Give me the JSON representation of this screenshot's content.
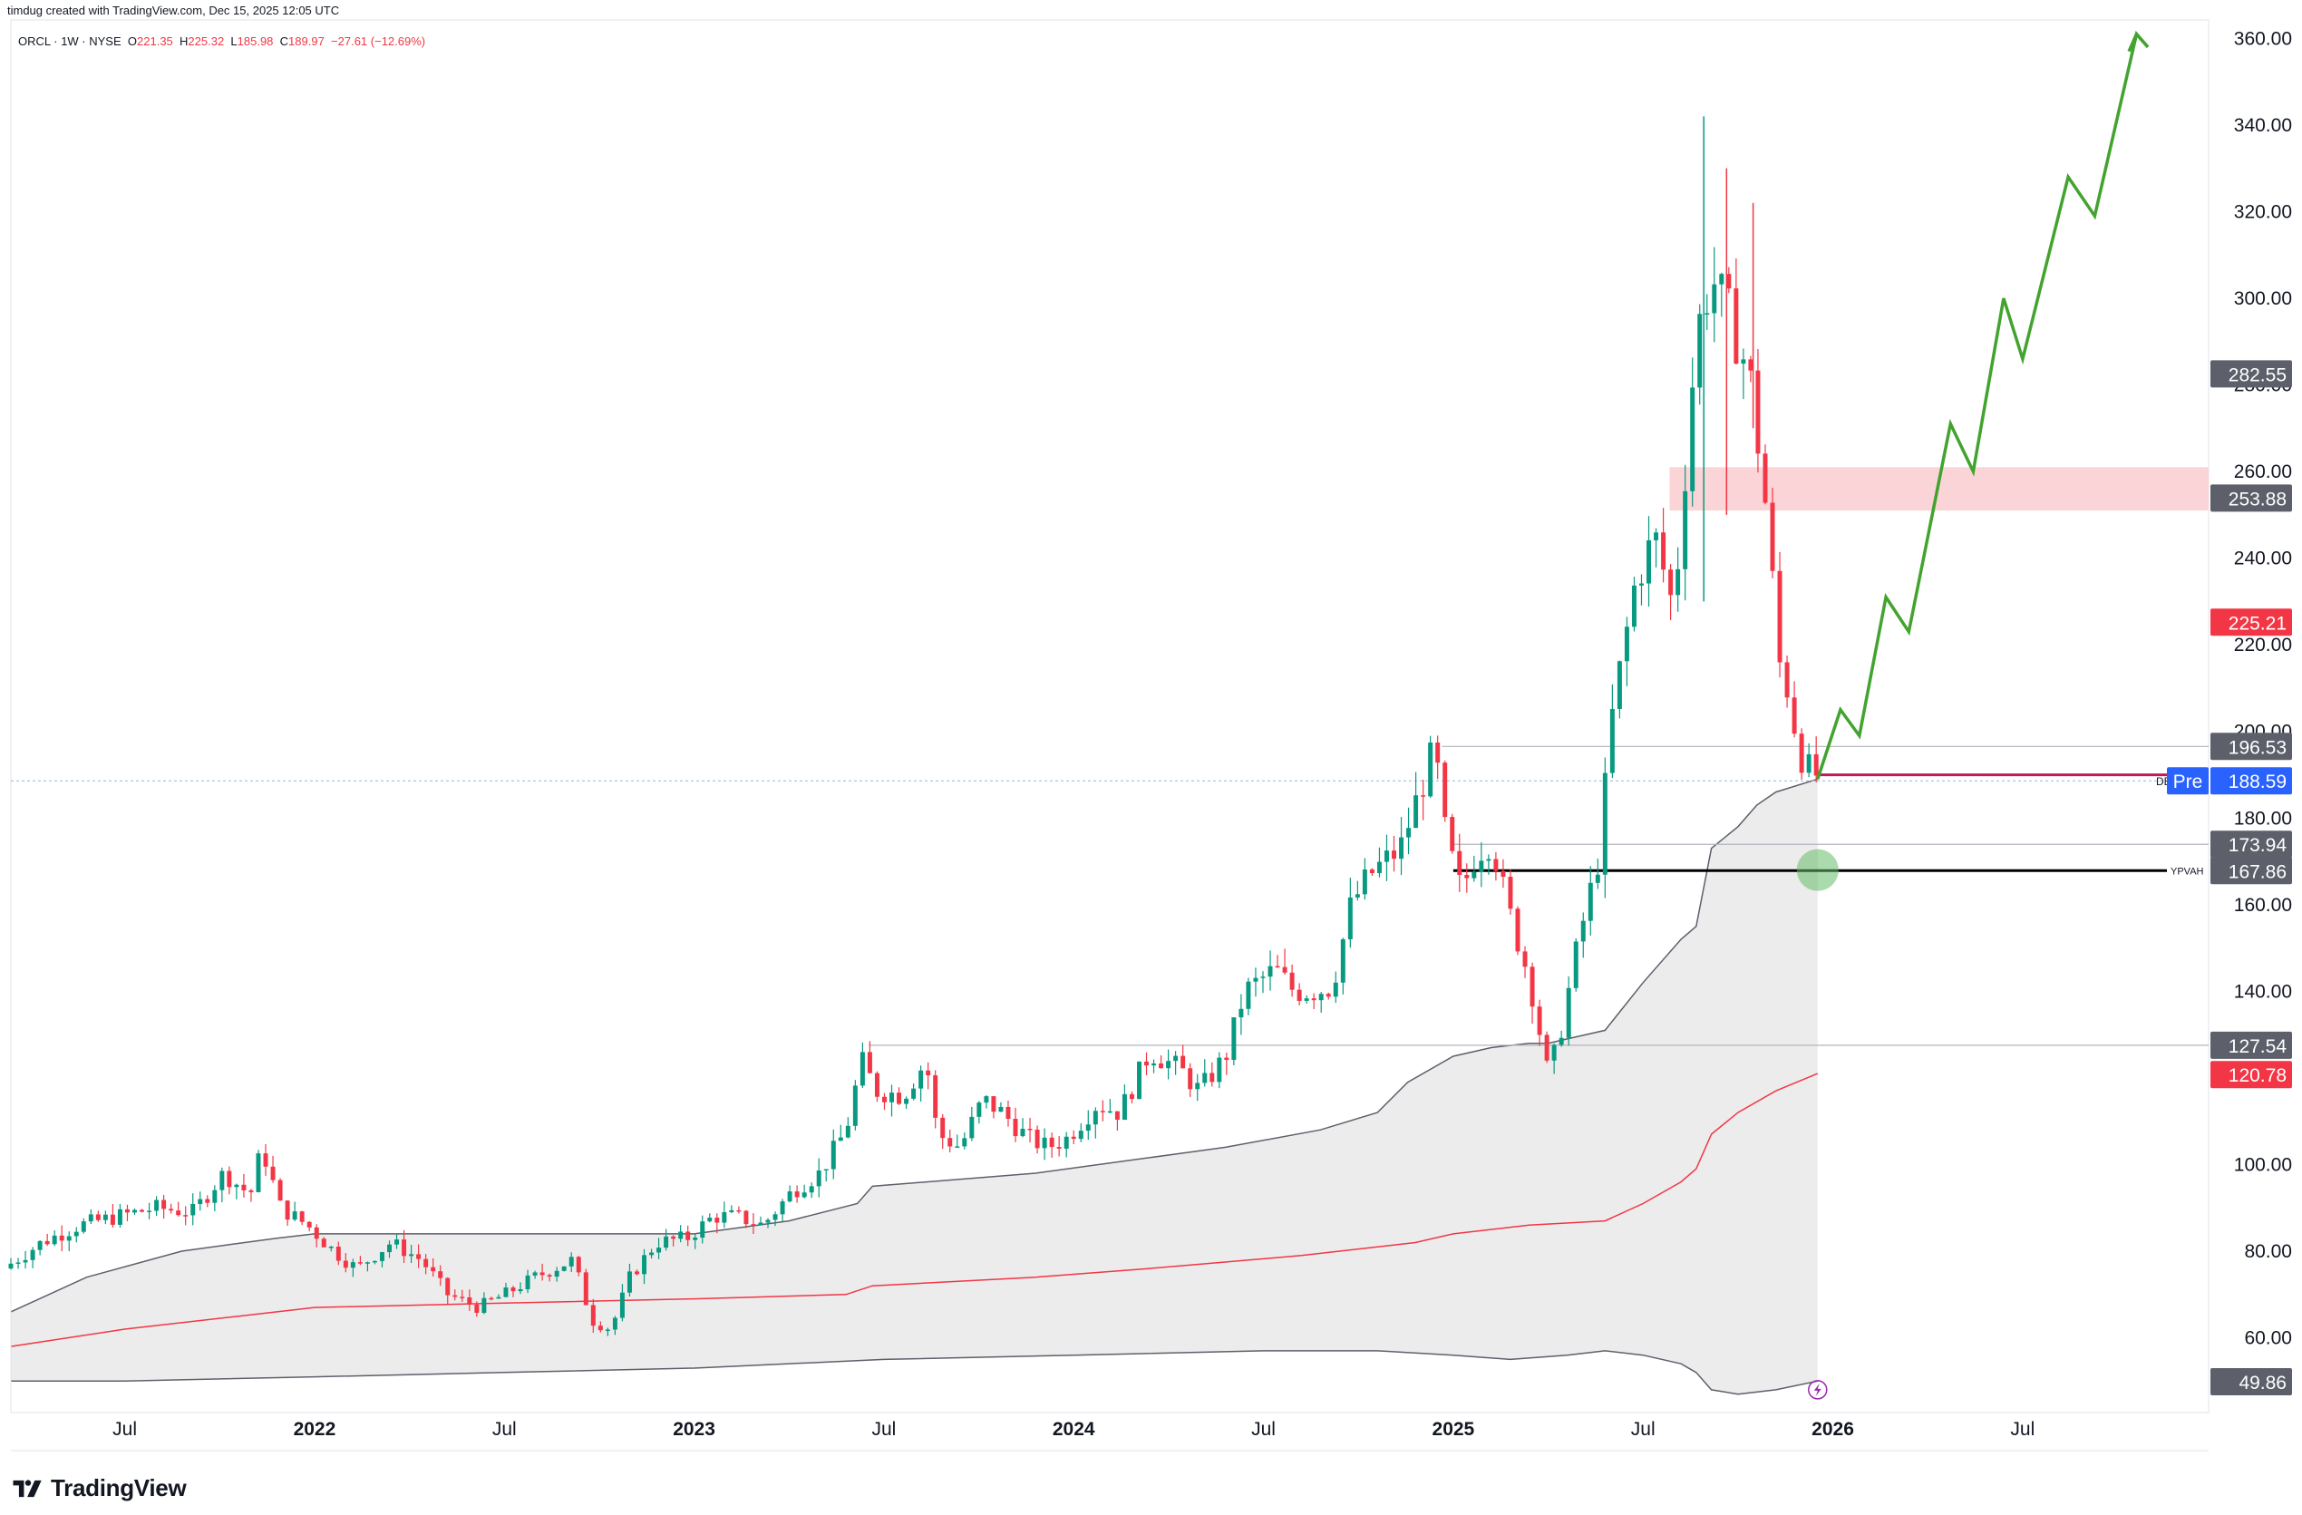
{
  "header": {
    "attribution": "timdug created with TradingView.com, Dec 15, 2025 12:05 UTC",
    "symbol": "ORCL · 1W · NYSE",
    "ohlc": {
      "o_label": "O",
      "o": "221.35",
      "h_label": "H",
      "h": "225.32",
      "l_label": "L",
      "l": "185.98",
      "c_label": "C",
      "c": "189.97",
      "change": "−27.61 (−12.69%)"
    }
  },
  "brand": {
    "name": "TradingView",
    "logo": "tradingview-logo-icon"
  },
  "colors": {
    "up": "#089981",
    "down": "#f23645",
    "band_fill": "#ececec",
    "band_line": "#5d606b",
    "ma_line": "#f23645",
    "projection": "#43a32f",
    "resistance_zone": "#fbd4d7",
    "support_line": "#000000",
    "pre_label": "#2962ff",
    "gray_label": "#5d606b",
    "red_label": "#f23645"
  },
  "chart_data": {
    "type": "candlestick",
    "yaxis": {
      "ticks": [
        "60.00",
        "80.00",
        "100.00",
        "120.00",
        "140.00",
        "160.00",
        "180.00",
        "200.00",
        "220.00",
        "240.00",
        "260.00",
        "280.00",
        "300.00",
        "320.00",
        "340.00",
        "360.00"
      ],
      "ylim": [
        44,
        363
      ]
    },
    "xaxis": {
      "ticks": [
        {
          "label": "Jul",
          "year": false,
          "t": 2021.5
        },
        {
          "label": "2022",
          "year": true,
          "t": 2022.0
        },
        {
          "label": "Jul",
          "year": false,
          "t": 2022.5
        },
        {
          "label": "2023",
          "year": true,
          "t": 2023.0
        },
        {
          "label": "Jul",
          "year": false,
          "t": 2023.5
        },
        {
          "label": "2024",
          "year": true,
          "t": 2024.0
        },
        {
          "label": "Jul",
          "year": false,
          "t": 2024.5
        },
        {
          "label": "2025",
          "year": true,
          "t": 2025.0
        },
        {
          "label": "Jul",
          "year": false,
          "t": 2025.5
        },
        {
          "label": "2026",
          "year": true,
          "t": 2026.0
        },
        {
          "label": "Jul",
          "year": false,
          "t": 2026.5
        }
      ],
      "xlim": [
        2021.2,
        2026.99
      ]
    },
    "price_path": [
      [
        2021.2,
        76
      ],
      [
        2021.3,
        82
      ],
      [
        2021.4,
        86
      ],
      [
        2021.5,
        88
      ],
      [
        2021.6,
        90
      ],
      [
        2021.7,
        89
      ],
      [
        2021.78,
        98
      ],
      [
        2021.85,
        93
      ],
      [
        2021.88,
        104
      ],
      [
        2021.93,
        90
      ],
      [
        2022.0,
        86
      ],
      [
        2022.07,
        80
      ],
      [
        2022.13,
        76
      ],
      [
        2022.22,
        82
      ],
      [
        2022.3,
        78
      ],
      [
        2022.37,
        70
      ],
      [
        2022.45,
        67
      ],
      [
        2022.52,
        70
      ],
      [
        2022.6,
        74
      ],
      [
        2022.7,
        78
      ],
      [
        2022.75,
        64
      ],
      [
        2022.8,
        62
      ],
      [
        2022.85,
        74
      ],
      [
        2022.92,
        82
      ],
      [
        2023.0,
        83
      ],
      [
        2023.07,
        88
      ],
      [
        2023.13,
        88
      ],
      [
        2023.2,
        86
      ],
      [
        2023.28,
        94
      ],
      [
        2023.35,
        98
      ],
      [
        2023.42,
        108
      ],
      [
        2023.46,
        124
      ],
      [
        2023.5,
        117
      ],
      [
        2023.57,
        116
      ],
      [
        2023.63,
        124
      ],
      [
        2023.66,
        107
      ],
      [
        2023.72,
        104
      ],
      [
        2023.78,
        115
      ],
      [
        2023.83,
        112
      ],
      [
        2023.9,
        106
      ],
      [
        2023.95,
        104
      ],
      [
        2024.0,
        106
      ],
      [
        2024.08,
        114
      ],
      [
        2024.14,
        112
      ],
      [
        2024.22,
        126
      ],
      [
        2024.3,
        122
      ],
      [
        2024.35,
        117
      ],
      [
        2024.42,
        125
      ],
      [
        2024.47,
        140
      ],
      [
        2024.55,
        145
      ],
      [
        2024.6,
        140
      ],
      [
        2024.65,
        140
      ],
      [
        2024.7,
        141
      ],
      [
        2024.75,
        160
      ],
      [
        2024.8,
        167
      ],
      [
        2024.88,
        173
      ],
      [
        2024.93,
        186
      ],
      [
        2024.97,
        196
      ],
      [
        2025.0,
        175
      ],
      [
        2025.04,
        163
      ],
      [
        2025.08,
        172
      ],
      [
        2025.12,
        175
      ],
      [
        2025.16,
        160
      ],
      [
        2025.22,
        143
      ],
      [
        2025.27,
        120
      ],
      [
        2025.3,
        130
      ],
      [
        2025.35,
        152
      ],
      [
        2025.4,
        170
      ],
      [
        2025.44,
        205
      ],
      [
        2025.5,
        235
      ],
      [
        2025.55,
        245
      ],
      [
        2025.6,
        228
      ],
      [
        2025.66,
        292
      ],
      [
        2025.7,
        305
      ],
      [
        2025.75,
        295
      ],
      [
        2025.8,
        282
      ],
      [
        2025.84,
        254
      ],
      [
        2025.88,
        215
      ],
      [
        2025.9,
        210
      ],
      [
        2025.93,
        196
      ],
      [
        2025.96,
        190
      ]
    ],
    "band_upper": [
      [
        2021.2,
        66
      ],
      [
        2021.4,
        74
      ],
      [
        2021.65,
        80
      ],
      [
        2021.9,
        83
      ],
      [
        2022.0,
        84
      ],
      [
        2022.8,
        84
      ],
      [
        2023.0,
        84
      ],
      [
        2023.25,
        87
      ],
      [
        2023.43,
        91
      ],
      [
        2023.47,
        95
      ],
      [
        2023.9,
        98
      ],
      [
        2024.4,
        104
      ],
      [
        2024.65,
        108
      ],
      [
        2024.8,
        112
      ],
      [
        2024.88,
        119
      ],
      [
        2025.0,
        125
      ],
      [
        2025.1,
        127
      ],
      [
        2025.2,
        128
      ],
      [
        2025.25,
        128
      ],
      [
        2025.3,
        129
      ],
      [
        2025.4,
        131
      ],
      [
        2025.5,
        142
      ],
      [
        2025.6,
        152
      ],
      [
        2025.64,
        155
      ],
      [
        2025.68,
        173
      ],
      [
        2025.75,
        178
      ],
      [
        2025.8,
        183
      ],
      [
        2025.85,
        186
      ],
      [
        2025.96,
        189
      ]
    ],
    "band_lower": [
      [
        2021.2,
        50
      ],
      [
        2021.5,
        50
      ],
      [
        2022.0,
        51
      ],
      [
        2022.5,
        52
      ],
      [
        2023.0,
        53
      ],
      [
        2023.5,
        55
      ],
      [
        2024.0,
        56
      ],
      [
        2024.5,
        57
      ],
      [
        2024.8,
        57
      ],
      [
        2025.0,
        56
      ],
      [
        2025.15,
        55
      ],
      [
        2025.3,
        56
      ],
      [
        2025.4,
        57
      ],
      [
        2025.5,
        56
      ],
      [
        2025.6,
        54
      ],
      [
        2025.64,
        52
      ],
      [
        2025.68,
        48
      ],
      [
        2025.75,
        47
      ],
      [
        2025.85,
        48
      ],
      [
        2025.96,
        50
      ]
    ],
    "moving_average": [
      [
        2021.2,
        58
      ],
      [
        2021.5,
        62
      ],
      [
        2021.8,
        65
      ],
      [
        2022.0,
        67
      ],
      [
        2022.5,
        68
      ],
      [
        2023.0,
        69
      ],
      [
        2023.4,
        70
      ],
      [
        2023.47,
        72
      ],
      [
        2023.9,
        74
      ],
      [
        2024.2,
        76
      ],
      [
        2024.6,
        79
      ],
      [
        2024.9,
        82
      ],
      [
        2025.0,
        84
      ],
      [
        2025.2,
        86
      ],
      [
        2025.4,
        87
      ],
      [
        2025.5,
        91
      ],
      [
        2025.6,
        96
      ],
      [
        2025.64,
        99
      ],
      [
        2025.68,
        107
      ],
      [
        2025.75,
        112
      ],
      [
        2025.85,
        117
      ],
      [
        2025.96,
        121
      ]
    ],
    "projection": [
      [
        2025.96,
        189
      ],
      [
        2026.02,
        205
      ],
      [
        2026.07,
        199
      ],
      [
        2026.14,
        231
      ],
      [
        2026.2,
        223
      ],
      [
        2026.31,
        271
      ],
      [
        2026.37,
        260
      ],
      [
        2026.45,
        300
      ],
      [
        2026.5,
        286
      ],
      [
        2026.62,
        328
      ],
      [
        2026.69,
        319
      ],
      [
        2026.8,
        361
      ],
      [
        2026.83,
        358
      ]
    ],
    "resistance_zone": {
      "low": 251,
      "high": 261,
      "from": 2025.57
    },
    "horizontal_lines": [
      {
        "price": 196.53,
        "from": 2024.97,
        "color": "#b2b5be"
      },
      {
        "price": 173.94,
        "from": 2025.0,
        "color": "#b2b5be"
      },
      {
        "price": 127.54,
        "from": 2023.46,
        "color": "#b2b5be"
      },
      {
        "price": 189.97,
        "from": 2025.96,
        "color": "#c2185b"
      }
    ],
    "support_line": {
      "price": 167.86,
      "from": 2025.0,
      "label": "YPVAH"
    },
    "marker_circle": {
      "t": 2025.96,
      "price": 168
    },
    "side_labels": [
      {
        "value": "282.55",
        "price": 282.55,
        "kind": "gray"
      },
      {
        "value": "253.88",
        "price": 253.88,
        "kind": "gray"
      },
      {
        "value": "225.21",
        "price": 225.21,
        "kind": "red"
      },
      {
        "value": "196.53",
        "price": 196.53,
        "kind": "gray"
      },
      {
        "value": "188.59",
        "price": 188.59,
        "kind": "pre",
        "tag": "Pre"
      },
      {
        "value": "173.94",
        "price": 173.94,
        "kind": "gray"
      },
      {
        "value": "167.86",
        "price": 167.86,
        "kind": "gray"
      },
      {
        "value": "127.54",
        "price": 127.54,
        "kind": "gray"
      },
      {
        "value": "120.78",
        "price": 120.78,
        "kind": "red"
      },
      {
        "value": "49.86",
        "price": 49.86,
        "kind": "gray"
      }
    ],
    "dividend_marker": "DE",
    "bolt_icon": "lightning-bolt-icon"
  }
}
